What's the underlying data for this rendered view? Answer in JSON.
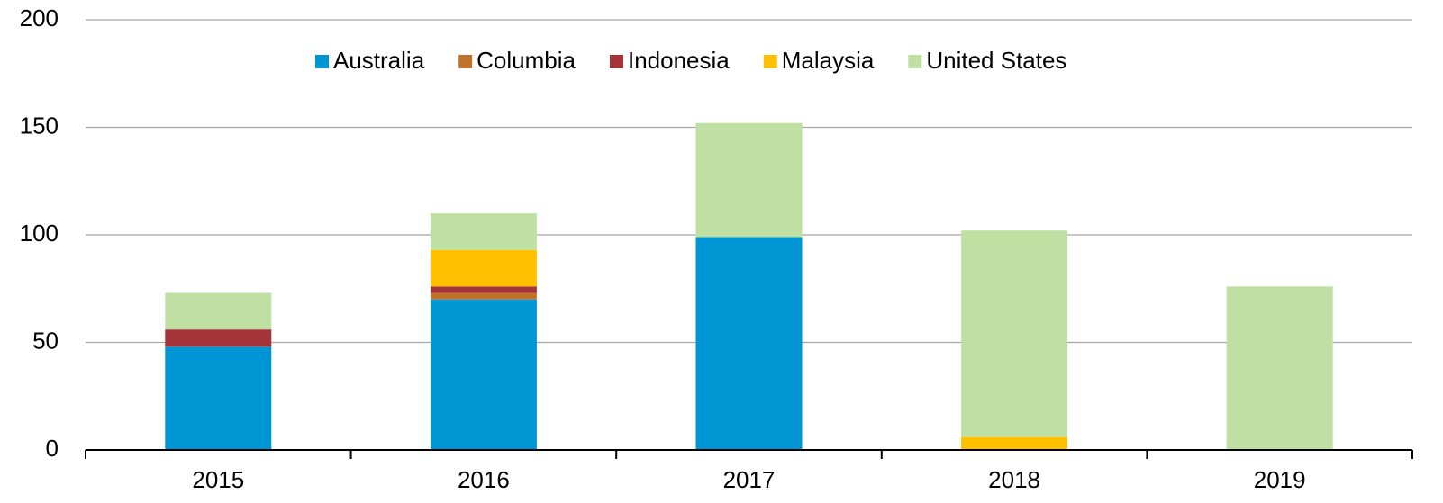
{
  "chart_data": {
    "type": "bar",
    "stacked": true,
    "categories": [
      "2015",
      "2016",
      "2017",
      "2018",
      "2019"
    ],
    "series": [
      {
        "name": "Australia",
        "color": "#0096d6",
        "values": [
          48,
          70,
          99,
          0,
          0
        ]
      },
      {
        "name": "Columbia",
        "color": "#c0722a",
        "values": [
          0,
          3,
          0,
          0,
          0
        ]
      },
      {
        "name": "Indonesia",
        "color": "#a4343a",
        "values": [
          8,
          3,
          0,
          0,
          0
        ]
      },
      {
        "name": "Malaysia",
        "color": "#ffc000",
        "values": [
          0,
          17,
          0,
          6,
          0
        ]
      },
      {
        "name": "United States",
        "color": "#bfe0a2",
        "values": [
          17,
          17,
          53,
          96,
          76
        ]
      }
    ],
    "ylim": [
      0,
      200
    ],
    "yticks": [
      0,
      50,
      100,
      150,
      200
    ],
    "grid": true,
    "legend": "top"
  }
}
